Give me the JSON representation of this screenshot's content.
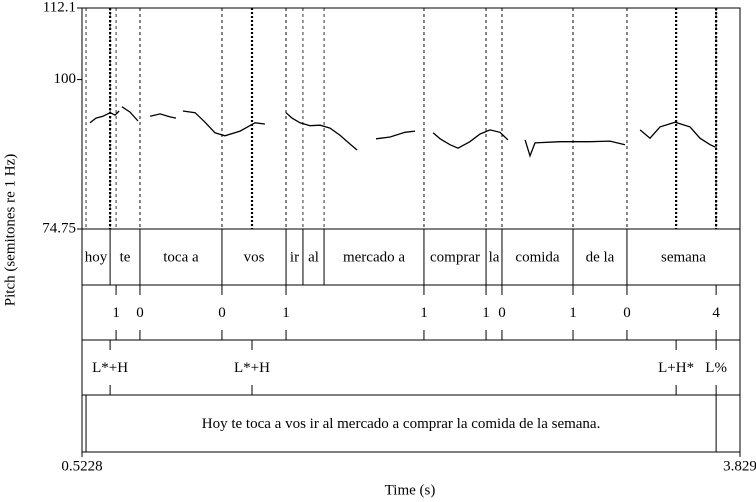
{
  "chart_data": {
    "type": "line",
    "x_label": "Time (s)",
    "y_label": "Pitch (semitones re 1 Hz)",
    "xlim": [
      0.5228,
      3.829
    ],
    "xticks": [
      0.5228,
      3.829
    ],
    "ylim": [
      74.75,
      112.1
    ],
    "yticks": [
      74.75,
      100,
      112.1
    ],
    "color": "#000000",
    "x": [
      0.563,
      0.593,
      0.628,
      0.664,
      0.689,
      0.709,
      null,
      0.724,
      0.764,
      0.804,
      null,
      0.865,
      0.915,
      0.965,
      0.995,
      null,
      1.03,
      1.091,
      1.141,
      1.191,
      1.241,
      1.317,
      1.392,
      1.442,
      null,
      1.548,
      1.578,
      1.618,
      1.669,
      1.719,
      1.769,
      1.819,
      1.87,
      1.905,
      null,
      2.0,
      2.071,
      2.146,
      2.196,
      null,
      2.287,
      2.322,
      2.372,
      2.412,
      2.472,
      2.523,
      2.573,
      2.623,
      2.663,
      null,
      2.749,
      2.774,
      2.799,
      2.925,
      3.075,
      3.176,
      3.251,
      null,
      3.327,
      3.377,
      3.427,
      3.503,
      3.578,
      3.628,
      3.679,
      3.704
    ],
    "values": [
      92.7,
      93.5,
      93.8,
      94.4,
      94.0,
      94.7,
      null,
      95.4,
      94.5,
      93.0,
      null,
      93.8,
      94.2,
      93.7,
      93.5,
      null,
      94.7,
      94.4,
      92.8,
      91.0,
      90.5,
      91.3,
      92.7,
      92.5,
      null,
      94.4,
      93.5,
      92.7,
      92.2,
      92.3,
      91.8,
      90.6,
      89.1,
      88.1,
      null,
      90.0,
      90.3,
      91.1,
      91.3,
      null,
      91.0,
      90.0,
      89.0,
      88.4,
      89.5,
      90.8,
      91.5,
      91.1,
      89.8,
      null,
      89.8,
      87.1,
      89.3,
      89.5,
      89.5,
      89.6,
      89.0,
      null,
      91.5,
      90.1,
      92.0,
      92.8,
      92.0,
      90.1,
      89.0,
      88.6
    ],
    "tiers": [
      {
        "kind": "interval",
        "boundaries": [
          0.664,
          0.814,
          1.226,
          1.548,
          1.633,
          1.739,
          2.241,
          2.553,
          2.633,
          2.99,
          3.261
        ],
        "labels": [
          "hoy",
          "te",
          "toca a",
          "vos",
          "ir",
          "al",
          "mercado a",
          "comprar",
          "la",
          "comida",
          "de la",
          "semana"
        ]
      },
      {
        "kind": "point",
        "points": [
          0.694,
          0.814,
          1.226,
          1.548,
          2.241,
          2.553,
          2.633,
          2.99,
          3.261,
          3.709
        ],
        "labels": [
          "1",
          "0",
          "0",
          "1",
          "1",
          "1",
          "0",
          "1",
          "0",
          "4"
        ]
      },
      {
        "kind": "point",
        "points": [
          0.664,
          1.377,
          3.508,
          3.709
        ],
        "labels": [
          "L*+H",
          "L*+H",
          "L+H*",
          "L%"
        ]
      },
      {
        "kind": "interval",
        "boundaries": [
          0.543,
          3.709
        ],
        "labels": [
          null,
          "Hoy te toca a vos ir al mercado a comprar la comida de la semana.",
          null
        ]
      }
    ]
  }
}
